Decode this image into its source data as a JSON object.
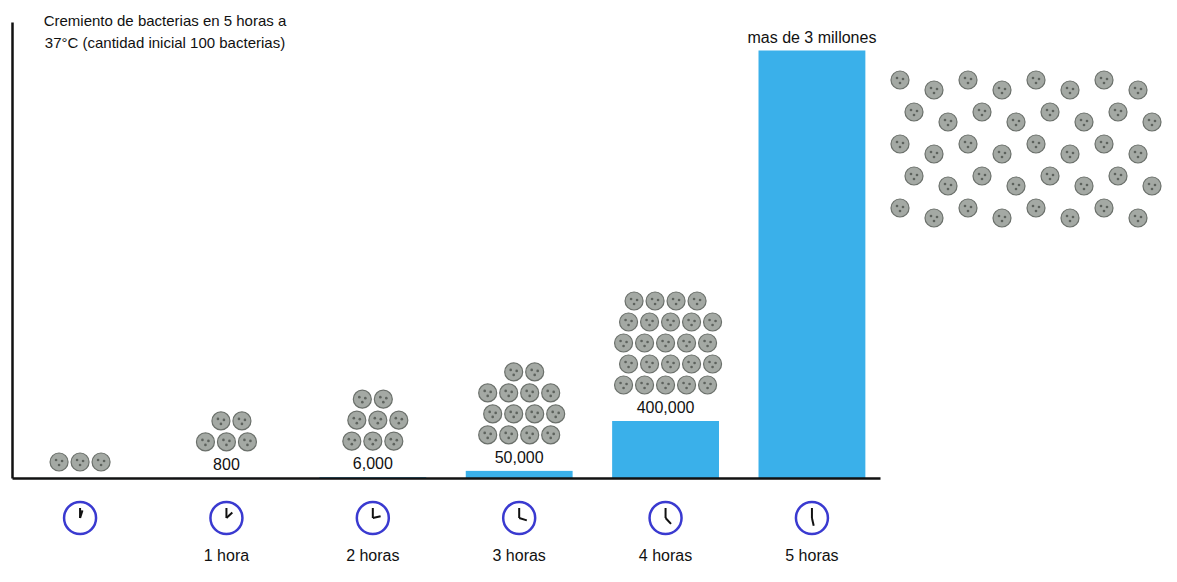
{
  "chart_data": {
    "type": "bar",
    "title": "Cremiento de bacterias en 5 horas a 37°C (cantidad inicial 100 bacterias)",
    "categories": [
      null,
      "1 hora",
      "2 horas",
      "3 horas",
      "4 horas",
      "5 horas"
    ],
    "values": [
      100,
      800,
      6000,
      50000,
      400000,
      3000000
    ],
    "value_labels": [
      null,
      "800",
      "6,000",
      "50,000",
      "400,000",
      "mas de 3 millones"
    ],
    "color": "#3ab0ea",
    "ylim": [
      0,
      3200000
    ],
    "data_labels": true,
    "tick_labels": "x",
    "grid": false
  }
}
